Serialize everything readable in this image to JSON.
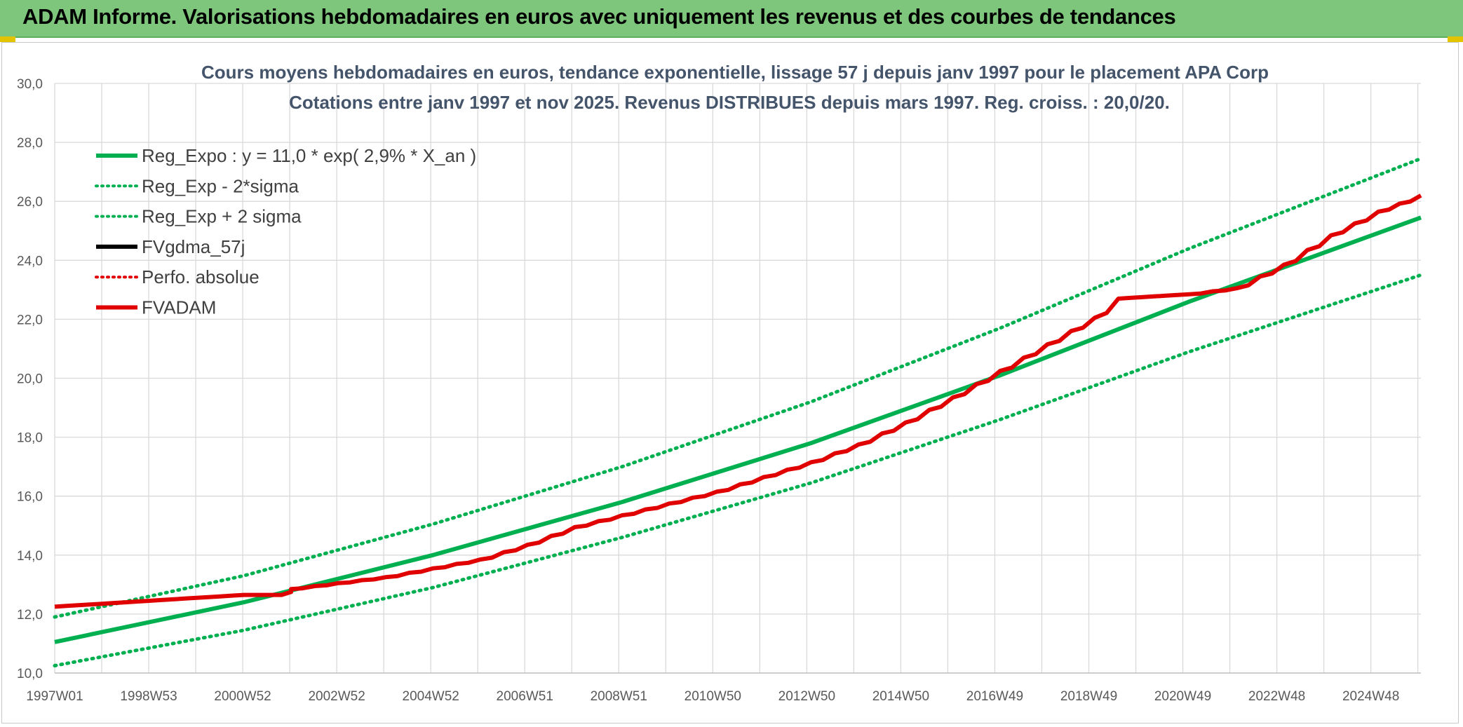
{
  "banner": {
    "title": "ADAM Informe. Valorisations hebdomadaires en euros avec uniquement les revenus et des courbes de tendances"
  },
  "colors": {
    "banner_bg": "#7dc67b",
    "green": "#00b050",
    "red": "#e00000",
    "black": "#000000",
    "grid": "#d9d9d9"
  },
  "chart_data": {
    "type": "line",
    "title": "Cours moyens hebdomadaires en euros, tendance exponentielle, lissage 57 j depuis janv 1997 pour le placement APA Corp",
    "subtitle": "Cotations entre janv 1997 et nov 2025. Revenus DISTRIBUES depuis mars 1997. Reg. croiss. : 20,0/20.",
    "ylim": [
      10,
      30
    ],
    "y_ticks": [
      "10,0",
      "12,0",
      "14,0",
      "16,0",
      "18,0",
      "20,0",
      "22,0",
      "24,0",
      "26,0",
      "28,0",
      "30,0"
    ],
    "x_range_years": [
      1997.0,
      2025.9
    ],
    "x_tick_labels": [
      "1997W01",
      "1998W53",
      "2000W52",
      "2002W52",
      "2004W52",
      "2006W51",
      "2008W51",
      "2010W50",
      "2012W50",
      "2014W50",
      "2016W49",
      "2018W49",
      "2020W49",
      "2022W48",
      "2024W48"
    ],
    "grid": true,
    "legend_position": "top-left",
    "legend": [
      {
        "label": "Reg_Expo : y = 11,0 * exp( 2,9% *  X_an )",
        "color": "#00b050",
        "style": "solid"
      },
      {
        "label": "Reg_Exp - 2*sigma",
        "color": "#00b050",
        "style": "dotted"
      },
      {
        "label": "Reg_Exp + 2 sigma",
        "color": "#00b050",
        "style": "dotted"
      },
      {
        "label": "FVgdma_57j",
        "color": "#000000",
        "style": "solid"
      },
      {
        "label": "Perfo. absolue",
        "color": "#e00000",
        "style": "dotted"
      },
      {
        "label": "FVADAM",
        "color": "#e00000",
        "style": "solid"
      }
    ],
    "series": [
      {
        "name": "Reg_Expo : y = 11,0 * exp( 2,9% *  X_an )",
        "x": [
          1997.0,
          2001.0,
          2005.0,
          2009.0,
          2013.0,
          2017.0,
          2021.0,
          2025.9
        ],
        "y": [
          11.05,
          12.4,
          14.0,
          15.8,
          17.8,
          20.1,
          22.6,
          25.45
        ]
      },
      {
        "name": "Reg_Exp - 2*sigma",
        "x": [
          1997.0,
          2001.0,
          2005.0,
          2009.0,
          2013.0,
          2017.0,
          2021.0,
          2025.9
        ],
        "y": [
          10.25,
          11.45,
          12.9,
          14.6,
          16.45,
          18.6,
          20.9,
          23.5
        ]
      },
      {
        "name": "Reg_Exp + 2 sigma",
        "x": [
          1997.0,
          2001.0,
          2005.0,
          2009.0,
          2013.0,
          2017.0,
          2021.0,
          2025.9
        ],
        "y": [
          11.9,
          13.3,
          15.05,
          17.0,
          19.2,
          21.7,
          24.4,
          27.45
        ]
      },
      {
        "name": "FVADAM",
        "x": [
          1997.0,
          1998.0,
          1999.0,
          2000.0,
          2001.0,
          2001.8,
          2002.0,
          2003.0,
          2004.0,
          2005.0,
          2006.0,
          2007.0,
          2008.0,
          2009.0,
          2010.0,
          2011.0,
          2012.0,
          2013.0,
          2014.0,
          2015.0,
          2016.0,
          2017.0,
          2018.0,
          2019.0,
          2019.5,
          2020.0,
          2021.0,
          2022.0,
          2023.0,
          2024.0,
          2025.0,
          2025.9
        ],
        "y": [
          12.25,
          12.35,
          12.45,
          12.55,
          12.65,
          12.65,
          12.85,
          13.05,
          13.25,
          13.55,
          13.85,
          14.35,
          14.95,
          15.35,
          15.75,
          16.15,
          16.65,
          17.15,
          17.75,
          18.5,
          19.35,
          20.25,
          21.15,
          22.05,
          22.7,
          22.75,
          22.85,
          23.05,
          23.85,
          24.85,
          25.65,
          26.2
        ]
      }
    ]
  }
}
